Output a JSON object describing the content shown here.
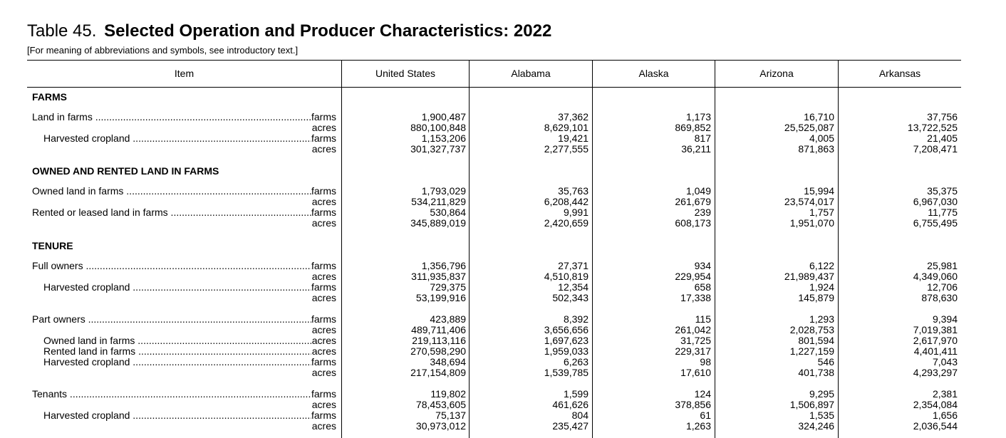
{
  "title": {
    "number": "Table 45.",
    "text": "Selected Operation and Producer Characteristics:  2022"
  },
  "subtitle": "[For meaning of abbreviations and symbols, see introductory text.]",
  "columns": [
    "Item",
    "United States",
    "Alabama",
    "Alaska",
    "Arizona",
    "Arkansas"
  ],
  "sections": [
    {
      "title": "FARMS",
      "rows": [
        {
          "label": "Land in farms",
          "indent": 0,
          "unit": "farms",
          "values": [
            "1,900,487",
            "37,362",
            "1,173",
            "16,710",
            "37,756"
          ]
        },
        {
          "label": "",
          "indent": 0,
          "unit": "acres",
          "values": [
            "880,100,848",
            "8,629,101",
            "869,852",
            "25,525,087",
            "13,722,525"
          ]
        },
        {
          "label": "Harvested cropland",
          "indent": 1,
          "unit": "farms",
          "values": [
            "1,153,206",
            "19,421",
            "817",
            "4,005",
            "21,405"
          ]
        },
        {
          "label": "",
          "indent": 0,
          "unit": "acres",
          "values": [
            "301,327,737",
            "2,277,555",
            "36,211",
            "871,863",
            "7,208,471"
          ]
        }
      ]
    },
    {
      "title": "OWNED AND RENTED LAND IN FARMS",
      "rows": [
        {
          "label": "Owned land in farms",
          "indent": 0,
          "unit": "farms",
          "values": [
            "1,793,029",
            "35,763",
            "1,049",
            "15,994",
            "35,375"
          ]
        },
        {
          "label": "",
          "indent": 0,
          "unit": "acres",
          "values": [
            "534,211,829",
            "6,208,442",
            "261,679",
            "23,574,017",
            "6,967,030"
          ]
        },
        {
          "label": "Rented or leased land in farms",
          "indent": 0,
          "unit": "farms",
          "values": [
            "530,864",
            "9,991",
            "239",
            "1,757",
            "11,775"
          ]
        },
        {
          "label": "",
          "indent": 0,
          "unit": "acres",
          "values": [
            "345,889,019",
            "2,420,659",
            "608,173",
            "1,951,070",
            "6,755,495"
          ]
        }
      ]
    },
    {
      "title": "TENURE",
      "rows": [
        {
          "label": "Full owners",
          "indent": 0,
          "unit": "farms",
          "values": [
            "1,356,796",
            "27,371",
            "934",
            "6,122",
            "25,981"
          ]
        },
        {
          "label": "",
          "indent": 0,
          "unit": "acres",
          "values": [
            "311,935,837",
            "4,510,819",
            "229,954",
            "21,989,437",
            "4,349,060"
          ]
        },
        {
          "label": "Harvested cropland",
          "indent": 1,
          "unit": "farms",
          "values": [
            "729,375",
            "12,354",
            "658",
            "1,924",
            "12,706"
          ]
        },
        {
          "label": "",
          "indent": 0,
          "unit": "acres",
          "values": [
            "53,199,916",
            "502,343",
            "17,338",
            "145,879",
            "878,630"
          ]
        },
        {
          "gap": true
        },
        {
          "label": "Part owners",
          "indent": 0,
          "unit": "farms",
          "values": [
            "423,889",
            "8,392",
            "115",
            "1,293",
            "9,394"
          ]
        },
        {
          "label": "",
          "indent": 0,
          "unit": "acres",
          "values": [
            "489,711,406",
            "3,656,656",
            "261,042",
            "2,028,753",
            "7,019,381"
          ]
        },
        {
          "label": "Owned land in farms",
          "indent": 1,
          "unit": "acres",
          "values": [
            "219,113,116",
            "1,697,623",
            "31,725",
            "801,594",
            "2,617,970"
          ]
        },
        {
          "label": "Rented land in farms",
          "indent": 1,
          "unit": "acres",
          "values": [
            "270,598,290",
            "1,959,033",
            "229,317",
            "1,227,159",
            "4,401,411"
          ]
        },
        {
          "label": "Harvested cropland",
          "indent": 1,
          "unit": "farms",
          "values": [
            "348,694",
            "6,263",
            "98",
            "546",
            "7,043"
          ]
        },
        {
          "label": "",
          "indent": 0,
          "unit": "acres",
          "values": [
            "217,154,809",
            "1,539,785",
            "17,610",
            "401,738",
            "4,293,297"
          ]
        },
        {
          "gap": true
        },
        {
          "label": "Tenants",
          "indent": 0,
          "unit": "farms",
          "values": [
            "119,802",
            "1,599",
            "124",
            "9,295",
            "2,381"
          ]
        },
        {
          "label": "",
          "indent": 0,
          "unit": "acres",
          "values": [
            "78,453,605",
            "461,626",
            "378,856",
            "1,506,897",
            "2,354,084"
          ]
        },
        {
          "label": "Harvested cropland",
          "indent": 1,
          "unit": "farms",
          "values": [
            "75,137",
            "804",
            "61",
            "1,535",
            "1,656"
          ]
        },
        {
          "label": "",
          "indent": 0,
          "unit": "acres",
          "values": [
            "30,973,012",
            "235,427",
            "1,263",
            "324,246",
            "2,036,544"
          ]
        }
      ]
    }
  ]
}
